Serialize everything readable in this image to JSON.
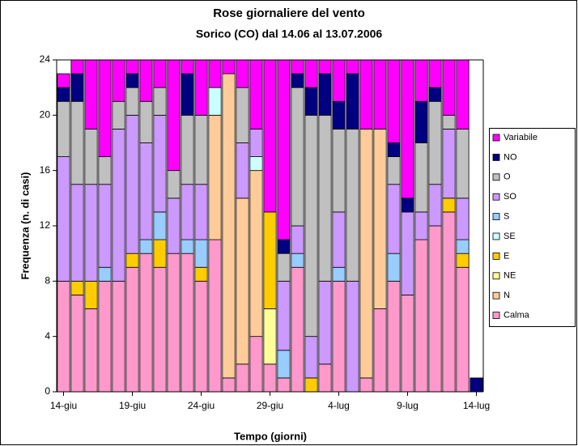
{
  "chart_data": {
    "type": "stacked_bar",
    "title": "Rose giornaliere del vento",
    "subtitle": "Sorico (CO) dal 14.06 al 13.07.2006",
    "x_label": "Tempo (giorni)",
    "y_label": "Frequenza (n. di casi)",
    "categories": [
      "14-giu",
      null,
      null,
      null,
      null,
      "19-giu",
      null,
      null,
      null,
      null,
      "24-giu",
      null,
      null,
      null,
      null,
      "29-giu",
      null,
      null,
      null,
      null,
      "4-lug",
      null,
      null,
      null,
      null,
      "9-lug",
      null,
      null,
      null,
      null,
      "14-lug"
    ],
    "series": [
      {
        "name": "Calma",
        "color": "#ff99cc",
        "values": [
          8,
          7,
          6,
          8,
          8,
          9,
          10,
          9,
          10,
          10,
          8,
          11,
          1,
          2,
          4,
          2,
          1,
          9,
          0,
          2,
          8,
          0,
          1,
          6,
          8,
          7,
          11,
          12,
          13,
          9,
          0
        ]
      },
      {
        "name": "N",
        "color": "#ffcc99",
        "values": [
          0,
          0,
          0,
          0,
          0,
          0,
          0,
          0,
          0,
          0,
          0,
          9,
          22,
          12,
          12,
          0,
          0,
          0,
          0,
          0,
          0,
          0,
          18,
          13,
          0,
          0,
          0,
          0,
          0,
          0,
          0
        ]
      },
      {
        "name": "NE",
        "color": "#ffff99",
        "values": [
          0,
          0,
          0,
          0,
          0,
          0,
          0,
          0,
          0,
          0,
          0,
          0,
          0,
          0,
          0,
          4,
          0,
          0,
          0,
          0,
          0,
          0,
          0,
          0,
          0,
          0,
          0,
          0,
          0,
          0,
          0
        ]
      },
      {
        "name": "E",
        "color": "#ffcc00",
        "values": [
          0,
          1,
          2,
          0,
          0,
          1,
          0,
          2,
          0,
          0,
          1,
          0,
          0,
          0,
          0,
          7,
          0,
          0,
          1,
          0,
          0,
          0,
          0,
          0,
          0,
          0,
          0,
          0,
          1,
          1,
          0
        ]
      },
      {
        "name": "SE",
        "color": "#ccffff",
        "values": [
          0,
          0,
          0,
          0,
          0,
          0,
          0,
          0,
          0,
          0,
          0,
          2,
          0,
          0,
          1,
          0,
          0,
          0,
          0,
          0,
          0,
          0,
          0,
          0,
          0,
          0,
          0,
          0,
          0,
          0,
          0
        ]
      },
      {
        "name": "S",
        "color": "#99ccff",
        "values": [
          0,
          0,
          0,
          1,
          0,
          0,
          1,
          2,
          0,
          1,
          2,
          0,
          0,
          0,
          0,
          0,
          2,
          1,
          0,
          0,
          1,
          0,
          0,
          0,
          2,
          0,
          0,
          0,
          0,
          1,
          0
        ]
      },
      {
        "name": "SO",
        "color": "#cc99ff",
        "values": [
          9,
          7,
          7,
          6,
          11,
          10,
          7,
          7,
          4,
          4,
          4,
          0,
          0,
          4,
          2,
          0,
          5,
          2,
          3,
          6,
          4,
          8,
          0,
          0,
          5,
          6,
          2,
          3,
          5,
          3,
          0
        ]
      },
      {
        "name": "O",
        "color": "#c0c0c0",
        "values": [
          4,
          6,
          4,
          2,
          2,
          2,
          3,
          2,
          2,
          5,
          5,
          0,
          0,
          4,
          0,
          0,
          2,
          10,
          16,
          12,
          6,
          11,
          0,
          0,
          2,
          0,
          5,
          6,
          1,
          5,
          0
        ]
      },
      {
        "name": "NO",
        "color": "#000080",
        "values": [
          1,
          2,
          0,
          0,
          0,
          1,
          0,
          0,
          0,
          3,
          0,
          0,
          0,
          0,
          0,
          0,
          1,
          1,
          2,
          3,
          2,
          4,
          0,
          0,
          1,
          1,
          3,
          1,
          0,
          0,
          1
        ]
      },
      {
        "name": "Variabile",
        "color": "#ff00ff",
        "values": [
          1,
          1,
          5,
          7,
          3,
          1,
          3,
          2,
          8,
          1,
          4,
          2,
          1,
          2,
          5,
          11,
          13,
          1,
          2,
          1,
          3,
          1,
          5,
          5,
          6,
          10,
          3,
          2,
          4,
          5,
          0
        ]
      }
    ],
    "ylim": [
      0,
      24
    ],
    "yticks": [
      0,
      4,
      8,
      12,
      16,
      20,
      24
    ],
    "legend": "right"
  }
}
